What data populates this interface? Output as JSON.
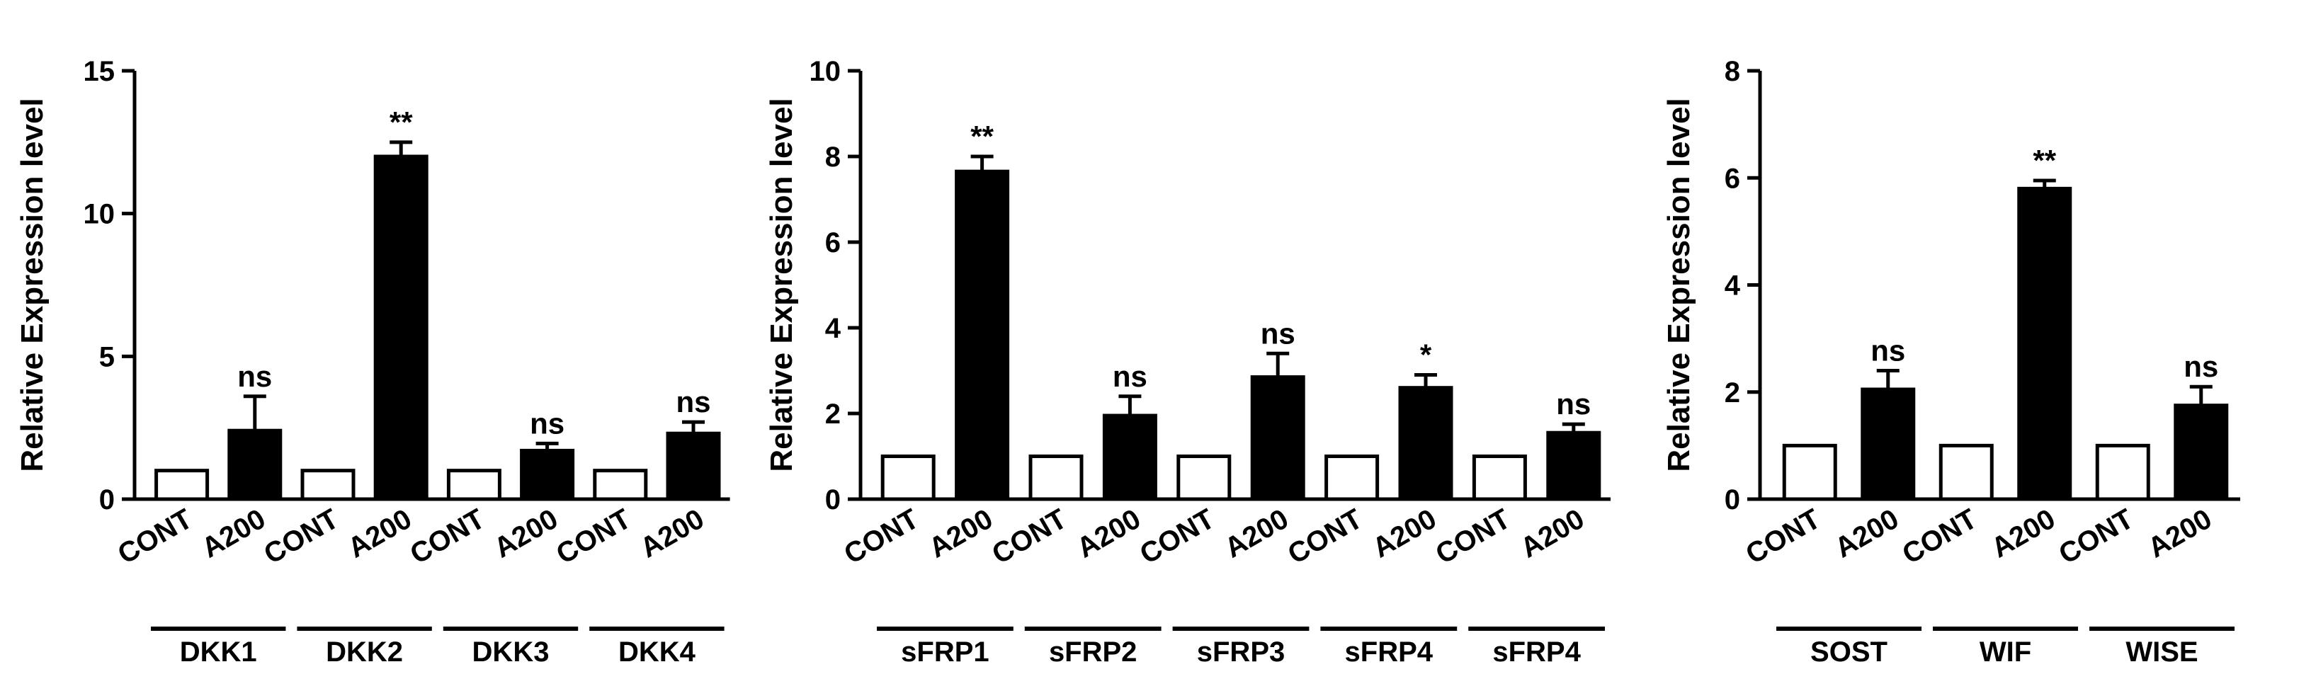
{
  "chart_data": [
    {
      "type": "bar",
      "ylabel": "Relative Expression level",
      "ylim": [
        0,
        15
      ],
      "yticks": [
        0,
        5,
        10,
        15
      ],
      "grid": false,
      "legend": "none",
      "groups": [
        {
          "label": "DKK1",
          "bars": [
            {
              "label": "CONT",
              "value": 1.0,
              "error": 0,
              "fill": "white",
              "sig": ""
            },
            {
              "label": "A200",
              "value": 2.4,
              "error": 1.2,
              "fill": "black",
              "sig": "ns"
            }
          ]
        },
        {
          "label": "DKK2",
          "bars": [
            {
              "label": "CONT",
              "value": 1.0,
              "error": 0,
              "fill": "white",
              "sig": ""
            },
            {
              "label": "A200",
              "value": 12.0,
              "error": 0.5,
              "fill": "black",
              "sig": "**"
            }
          ]
        },
        {
          "label": "DKK3",
          "bars": [
            {
              "label": "CONT",
              "value": 1.0,
              "error": 0,
              "fill": "white",
              "sig": ""
            },
            {
              "label": "A200",
              "value": 1.7,
              "error": 0.25,
              "fill": "black",
              "sig": "ns"
            }
          ]
        },
        {
          "label": "DKK4",
          "bars": [
            {
              "label": "CONT",
              "value": 1.0,
              "error": 0,
              "fill": "white",
              "sig": ""
            },
            {
              "label": "A200",
              "value": 2.3,
              "error": 0.4,
              "fill": "black",
              "sig": "ns"
            }
          ]
        }
      ]
    },
    {
      "type": "bar",
      "ylabel": "Relative Expression level",
      "ylim": [
        0,
        10
      ],
      "yticks": [
        0,
        2,
        4,
        6,
        8,
        10
      ],
      "grid": false,
      "legend": "none",
      "groups": [
        {
          "label": "sFRP1",
          "bars": [
            {
              "label": "CONT",
              "value": 1.0,
              "error": 0,
              "fill": "white",
              "sig": ""
            },
            {
              "label": "A200",
              "value": 7.65,
              "error": 0.35,
              "fill": "black",
              "sig": "**"
            }
          ]
        },
        {
          "label": "sFRP2",
          "bars": [
            {
              "label": "CONT",
              "value": 1.0,
              "error": 0,
              "fill": "white",
              "sig": ""
            },
            {
              "label": "A200",
              "value": 1.95,
              "error": 0.45,
              "fill": "black",
              "sig": "ns"
            }
          ]
        },
        {
          "label": "sFRP3",
          "bars": [
            {
              "label": "CONT",
              "value": 1.0,
              "error": 0,
              "fill": "white",
              "sig": ""
            },
            {
              "label": "A200",
              "value": 2.85,
              "error": 0.55,
              "fill": "black",
              "sig": "ns"
            }
          ]
        },
        {
          "label": "sFRP4",
          "bars": [
            {
              "label": "CONT",
              "value": 1.0,
              "error": 0,
              "fill": "white",
              "sig": ""
            },
            {
              "label": "A200",
              "value": 2.6,
              "error": 0.3,
              "fill": "black",
              "sig": "*"
            }
          ]
        },
        {
          "label": "sFRP4",
          "bars": [
            {
              "label": "CONT",
              "value": 1.0,
              "error": 0,
              "fill": "white",
              "sig": ""
            },
            {
              "label": "A200",
              "value": 1.55,
              "error": 0.2,
              "fill": "black",
              "sig": "ns"
            }
          ]
        }
      ]
    },
    {
      "type": "bar",
      "ylabel": "Relative Expression level",
      "ylim": [
        0,
        8
      ],
      "yticks": [
        0,
        2,
        4,
        6,
        8
      ],
      "grid": false,
      "legend": "none",
      "groups": [
        {
          "label": "SOST",
          "bars": [
            {
              "label": "CONT",
              "value": 1.0,
              "error": 0,
              "fill": "white",
              "sig": ""
            },
            {
              "label": "A200",
              "value": 2.05,
              "error": 0.35,
              "fill": "black",
              "sig": "ns"
            }
          ]
        },
        {
          "label": "WIF",
          "bars": [
            {
              "label": "CONT",
              "value": 1.0,
              "error": 0,
              "fill": "white",
              "sig": ""
            },
            {
              "label": "A200",
              "value": 5.8,
              "error": 0.15,
              "fill": "black",
              "sig": "**"
            }
          ]
        },
        {
          "label": "WISE",
          "bars": [
            {
              "label": "CONT",
              "value": 1.0,
              "error": 0,
              "fill": "white",
              "sig": ""
            },
            {
              "label": "A200",
              "value": 1.75,
              "error": 0.35,
              "fill": "black",
              "sig": "ns"
            }
          ]
        }
      ]
    }
  ]
}
